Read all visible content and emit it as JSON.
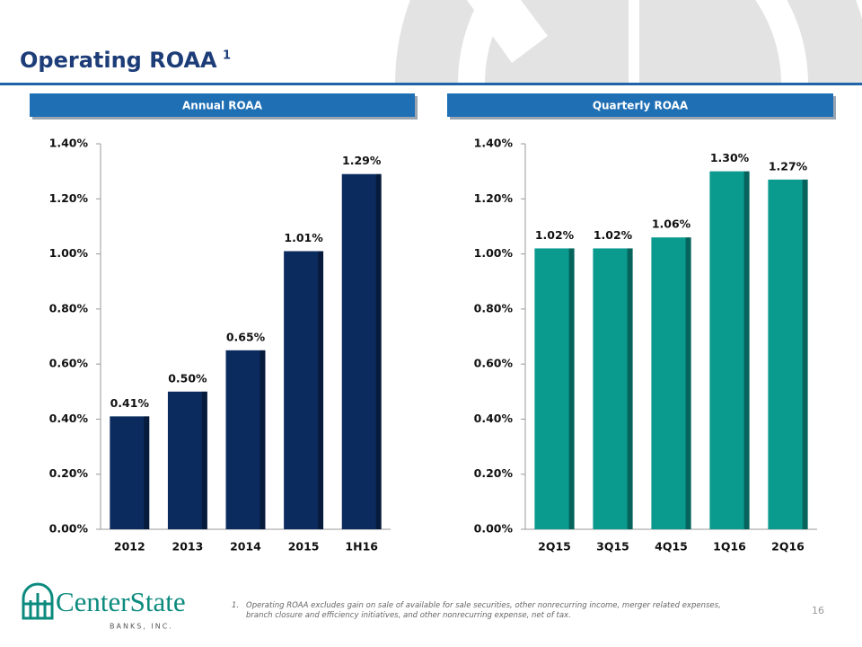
{
  "title": "Operating ROAA",
  "title_note": "1",
  "chart_data": [
    {
      "type": "bar",
      "title": "Annual ROAA",
      "categories": [
        "2012",
        "2013",
        "2014",
        "2015",
        "1H16"
      ],
      "values": [
        0.41,
        0.5,
        0.65,
        1.01,
        1.29
      ],
      "value_labels": [
        "0.41%",
        "0.50%",
        "0.65%",
        "1.01%",
        "1.29%"
      ],
      "color": "#0b2a5e",
      "ylim": [
        0,
        1.4
      ],
      "yticks": [
        {
          "value": 0,
          "label": "0.00%"
        },
        {
          "value": 0.2,
          "label": "0.20%"
        },
        {
          "value": 0.4,
          "label": "0.40%"
        },
        {
          "value": 0.6,
          "label": "0.60%"
        },
        {
          "value": 0.8,
          "label": "0.80%"
        },
        {
          "value": 1.0,
          "label": "1.00%"
        },
        {
          "value": 1.2,
          "label": "1.20%"
        },
        {
          "value": 1.4,
          "label": "1.40%"
        }
      ]
    },
    {
      "type": "bar",
      "title": "Quarterly ROAA",
      "categories": [
        "2Q15",
        "3Q15",
        "4Q15",
        "1Q16",
        "2Q16"
      ],
      "values": [
        1.02,
        1.02,
        1.06,
        1.3,
        1.27
      ],
      "value_labels": [
        "1.02%",
        "1.02%",
        "1.06%",
        "1.30%",
        "1.27%"
      ],
      "color": "#0a9a8e",
      "ylim": [
        0,
        1.4
      ],
      "yticks": [
        {
          "value": 0,
          "label": "0.00%"
        },
        {
          "value": 0.2,
          "label": "0.20%"
        },
        {
          "value": 0.4,
          "label": "0.40%"
        },
        {
          "value": 0.6,
          "label": "0.60%"
        },
        {
          "value": 0.8,
          "label": "0.80%"
        },
        {
          "value": 1.0,
          "label": "1.00%"
        },
        {
          "value": 1.2,
          "label": "1.20%"
        },
        {
          "value": 1.4,
          "label": "1.40%"
        }
      ]
    }
  ],
  "footnote": {
    "number": "1.",
    "text": "Operating ROAA excludes gain on sale of available for sale securities, other nonrecurring income, merger related expenses, branch closure and efficiency initiatives, and other nonrecurring expense, net of tax."
  },
  "page_number": "16",
  "logo": {
    "name": "CenterState",
    "subtitle": "BANKS, INC."
  }
}
